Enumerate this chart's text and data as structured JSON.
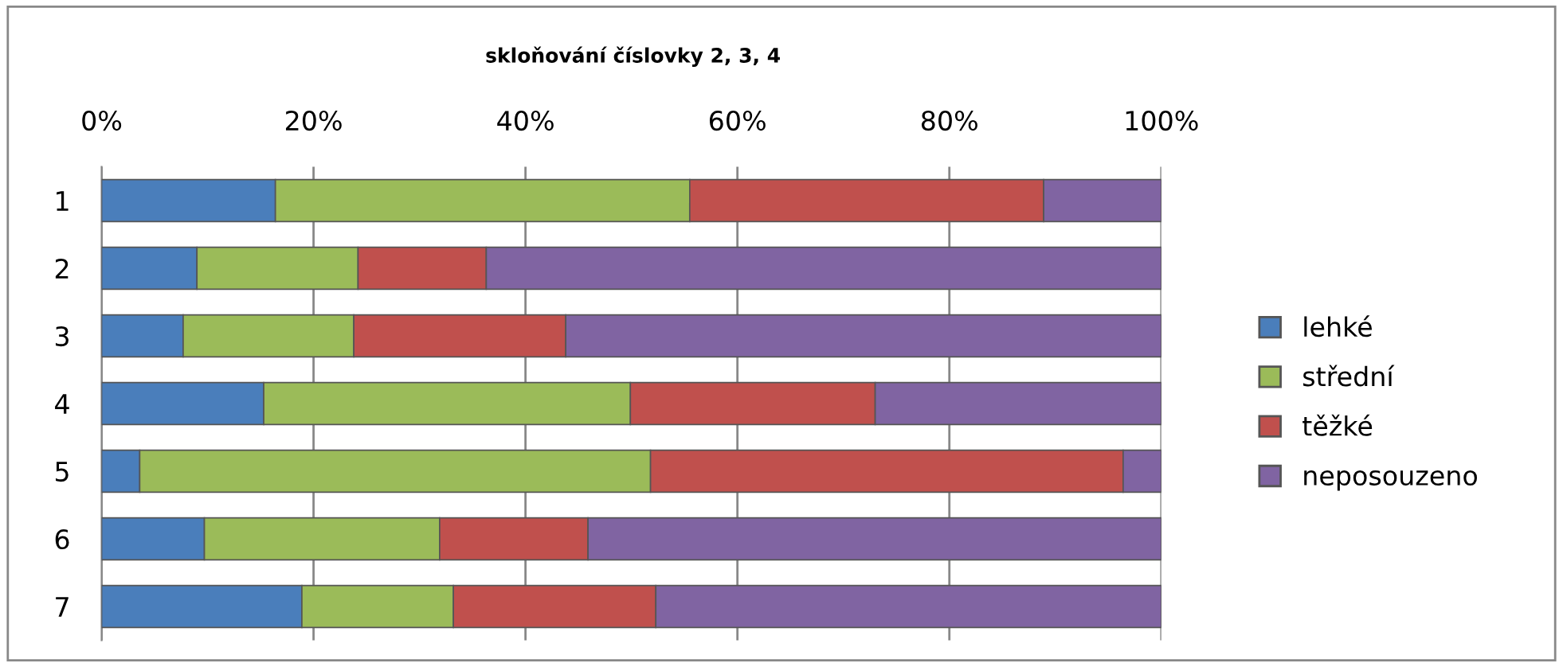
{
  "chart_data": {
    "type": "bar",
    "orientation": "horizontal",
    "stacked": true,
    "title": "skloňování číslovky 2, 3, 4",
    "categories": [
      "1",
      "2",
      "3",
      "4",
      "5",
      "6",
      "7"
    ],
    "series": [
      {
        "name": "lehké",
        "color": "#4a7ebb",
        "values": [
          16.4,
          9.0,
          7.7,
          15.3,
          3.6,
          9.7,
          18.9
        ]
      },
      {
        "name": "střední",
        "color": "#9bbb59",
        "values": [
          39.1,
          15.2,
          16.1,
          34.6,
          48.2,
          22.2,
          14.3
        ]
      },
      {
        "name": "těžké",
        "color": "#c0504d",
        "values": [
          33.4,
          12.1,
          20.0,
          23.1,
          44.6,
          14.0,
          19.1
        ]
      },
      {
        "name": "neposouzeno",
        "color": "#8064a2",
        "values": [
          11.1,
          63.7,
          56.2,
          27.0,
          3.6,
          54.1,
          47.7
        ]
      }
    ],
    "xlim": [
      0,
      100
    ],
    "xticks": [
      {
        "value": 0,
        "label": "0%"
      },
      {
        "value": 20,
        "label": "20%"
      },
      {
        "value": 40,
        "label": "40%"
      },
      {
        "value": 60,
        "label": "60%"
      },
      {
        "value": 80,
        "label": "80%"
      },
      {
        "value": 100,
        "label": "100%"
      }
    ],
    "grid": "x",
    "legend": "right"
  }
}
